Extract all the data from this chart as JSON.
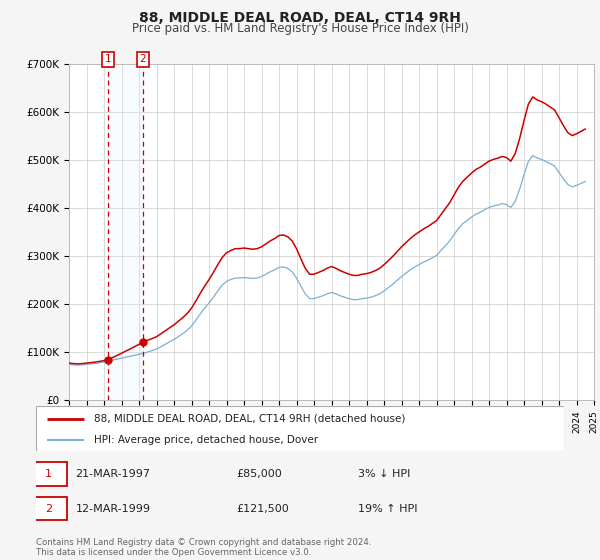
{
  "title": "88, MIDDLE DEAL ROAD, DEAL, CT14 9RH",
  "subtitle": "Price paid vs. HM Land Registry's House Price Index (HPI)",
  "legend_line1": "88, MIDDLE DEAL ROAD, DEAL, CT14 9RH (detached house)",
  "legend_line2": "HPI: Average price, detached house, Dover",
  "footer1": "Contains HM Land Registry data © Crown copyright and database right 2024.",
  "footer2": "This data is licensed under the Open Government Licence v3.0.",
  "transaction1_date": "21-MAR-1997",
  "transaction1_price": "£85,000",
  "transaction1_hpi": "3% ↓ HPI",
  "transaction2_date": "12-MAR-1999",
  "transaction2_price": "£121,500",
  "transaction2_hpi": "19% ↑ HPI",
  "vline1_x": 1997.22,
  "vline2_x": 1999.22,
  "shade_color": "#dce9f5",
  "vline_color": "#cc0000",
  "marker1_x": 1997.22,
  "marker1_y": 85000,
  "marker2_x": 1999.22,
  "marker2_y": 121500,
  "property_line_color": "#cc0000",
  "hpi_line_color": "#7bafd4",
  "ylim": [
    0,
    700000
  ],
  "xlim": [
    1995,
    2025
  ],
  "background_color": "#f5f5f5",
  "plot_bg_color": "#ffffff",
  "grid_color": "#cccccc",
  "title_fontsize": 10,
  "subtitle_fontsize": 8.5
}
